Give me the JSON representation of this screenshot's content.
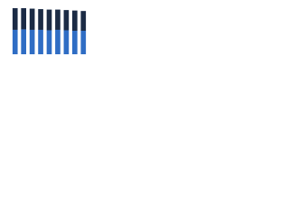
{
  "chart_data": {
    "type": "stacked-bar",
    "categories": [
      null,
      null,
      null,
      null,
      null,
      null,
      null,
      null,
      null
    ],
    "series": [
      {
        "name": null,
        "color": "#2f6dc4",
        "values": [
          52,
          53,
          52,
          52,
          51,
          52,
          51,
          50,
          50
        ]
      },
      {
        "name": null,
        "color": "#1b2b45",
        "values": [
          46,
          45,
          45,
          44,
          44,
          43,
          43,
          43,
          42
        ]
      }
    ],
    "ylim": [
      0,
      100
    ]
  }
}
